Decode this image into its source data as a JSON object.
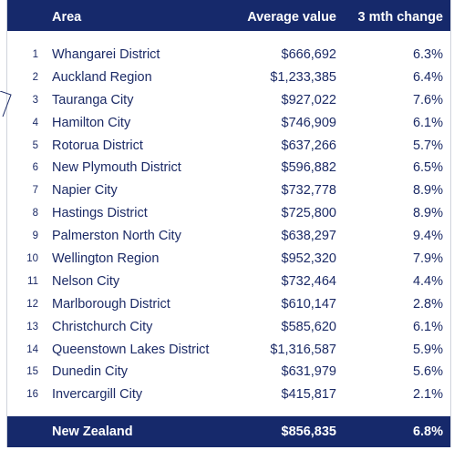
{
  "header": {
    "area": "Area",
    "average_value": "Average value",
    "change": "3 mth change"
  },
  "rows": [
    {
      "num": "1",
      "area": "Whangarei District",
      "avg": "$666,692",
      "chg": "6.3%"
    },
    {
      "num": "2",
      "area": "Auckland Region",
      "avg": "$1,233,385",
      "chg": "6.4%"
    },
    {
      "num": "3",
      "area": "Tauranga City",
      "avg": "$927,022",
      "chg": "7.6%"
    },
    {
      "num": "4",
      "area": "Hamilton City",
      "avg": "$746,909",
      "chg": "6.1%"
    },
    {
      "num": "5",
      "area": "Rotorua District",
      "avg": "$637,266",
      "chg": "5.7%"
    },
    {
      "num": "6",
      "area": "New Plymouth District",
      "avg": "$596,882",
      "chg": "6.5%"
    },
    {
      "num": "7",
      "area": "Napier City",
      "avg": "$732,778",
      "chg": "8.9%"
    },
    {
      "num": "8",
      "area": "Hastings District",
      "avg": "$725,800",
      "chg": "8.9%"
    },
    {
      "num": "9",
      "area": "Palmerston North City",
      "avg": "$638,297",
      "chg": "9.4%"
    },
    {
      "num": "10",
      "area": "Wellington Region",
      "avg": "$952,320",
      "chg": "7.9%"
    },
    {
      "num": "11",
      "area": "Nelson City",
      "avg": "$732,464",
      "chg": "4.4%"
    },
    {
      "num": "12",
      "area": "Marlborough District",
      "avg": "$610,147",
      "chg": "2.8%"
    },
    {
      "num": "13",
      "area": "Christchurch City",
      "avg": "$585,620",
      "chg": "6.1%"
    },
    {
      "num": "14",
      "area": "Queenstown Lakes District",
      "avg": "$1,316,587",
      "chg": "5.9%"
    },
    {
      "num": "15",
      "area": "Dunedin City",
      "avg": "$631,979",
      "chg": "5.6%"
    },
    {
      "num": "16",
      "area": "Invercargill City",
      "avg": "$415,817",
      "chg": "2.1%"
    }
  ],
  "footer": {
    "area": "New Zealand",
    "avg": "$856,835",
    "chg": "6.8%"
  },
  "colors": {
    "header_bg": "#16296b",
    "text": "#1b2a66"
  }
}
